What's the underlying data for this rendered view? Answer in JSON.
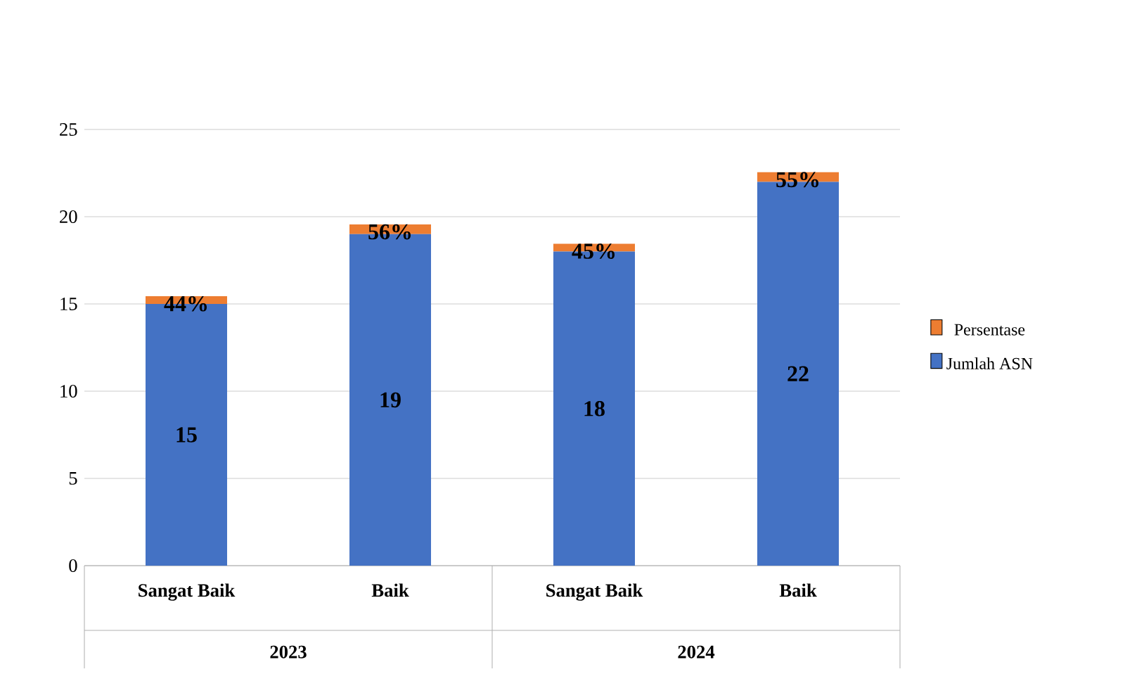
{
  "chart_data": {
    "type": "bar",
    "stacked": true,
    "categories": [
      "Sangat Baik",
      "Baik",
      "Sangat Baik",
      "Baik"
    ],
    "annotations": [
      "2023",
      "2024"
    ],
    "series": [
      {
        "name": "Jumlah ASN",
        "color": "#4472c4",
        "values": [
          15,
          19,
          18,
          22
        ],
        "value_labels": [
          "15",
          "19",
          "18",
          "22"
        ]
      },
      {
        "name": "Persentase",
        "color": "#ed7d31",
        "values": [
          0.44,
          0.56,
          0.45,
          0.55
        ],
        "value_labels": [
          "44%",
          "56%",
          "45%",
          "55%"
        ]
      }
    ],
    "ylim": [
      0,
      25
    ],
    "yticks": [
      0,
      5,
      10,
      15,
      20,
      25
    ],
    "grid": "y",
    "legend": "right"
  }
}
